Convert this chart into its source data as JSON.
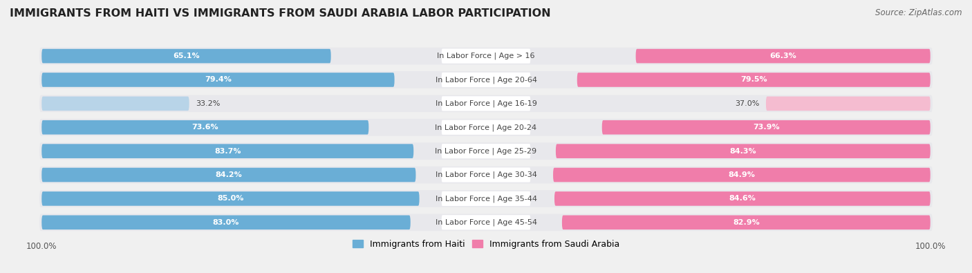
{
  "title": "IMMIGRANTS FROM HAITI VS IMMIGRANTS FROM SAUDI ARABIA LABOR PARTICIPATION",
  "source": "Source: ZipAtlas.com",
  "categories": [
    "In Labor Force | Age > 16",
    "In Labor Force | Age 20-64",
    "In Labor Force | Age 16-19",
    "In Labor Force | Age 20-24",
    "In Labor Force | Age 25-29",
    "In Labor Force | Age 30-34",
    "In Labor Force | Age 35-44",
    "In Labor Force | Age 45-54"
  ],
  "haiti_values": [
    65.1,
    79.4,
    33.2,
    73.6,
    83.7,
    84.2,
    85.0,
    83.0
  ],
  "saudi_values": [
    66.3,
    79.5,
    37.0,
    73.9,
    84.3,
    84.9,
    84.6,
    82.9
  ],
  "haiti_color": "#6aaed6",
  "saudi_color": "#f07daa",
  "haiti_color_light": "#b8d4e8",
  "saudi_color_light": "#f5bcd0",
  "row_bg_color": "#e8e8ec",
  "background_color": "#f0f0f0",
  "label_color_dark": "#444444",
  "legend_haiti": "Immigrants from Haiti",
  "legend_saudi": "Immigrants from Saudi Arabia",
  "max_value": 100.0,
  "title_fontsize": 11.5,
  "label_fontsize": 8.0,
  "value_fontsize": 8.0,
  "legend_fontsize": 9,
  "tick_fontsize": 8.5
}
